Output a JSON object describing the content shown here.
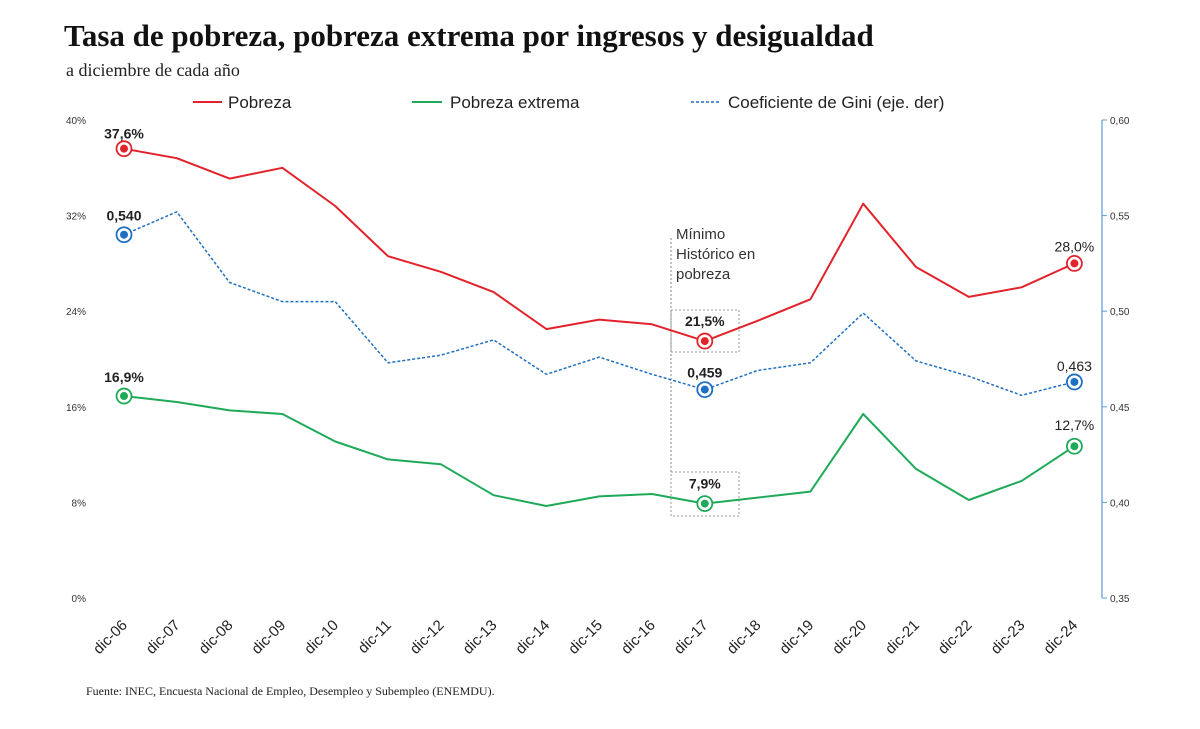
{
  "title": "Tasa de pobreza, pobreza extrema por ingresos y desigualdad",
  "subtitle": "a diciembre de cada año",
  "source": "Fuente: INEC, Encuesta Nacional de Empleo, Desempleo y Subempleo (ENEMDU).",
  "annotation": [
    "Mínimo",
    "Histórico en",
    "pobreza"
  ],
  "colors": {
    "pobreza": "#e3232b",
    "extrema": "#1faa59",
    "gini": "#1f6fc2",
    "axis": "#5b9bd5"
  },
  "chart_data": {
    "type": "line",
    "categories": [
      "dic-06",
      "dic-07",
      "dic-08",
      "dic-09",
      "dic-10",
      "dic-11",
      "dic-12",
      "dic-13",
      "dic-14",
      "dic-15",
      "dic-16",
      "dic-17",
      "dic-18",
      "dic-19",
      "dic-20",
      "dic-21",
      "dic-22",
      "dic-23",
      "dic-24"
    ],
    "y_left": {
      "min": 0,
      "max": 40,
      "ticks": [
        "0%",
        "8%",
        "16%",
        "24%",
        "32%",
        "40%"
      ],
      "tick_values": [
        0,
        8,
        16,
        24,
        32,
        40
      ]
    },
    "y_right": {
      "min": 0.35,
      "max": 0.6,
      "ticks": [
        "0,35",
        "0,40",
        "0,45",
        "0,50",
        "0,55",
        "0,60"
      ],
      "tick_values": [
        0.35,
        0.4,
        0.45,
        0.5,
        0.55,
        0.6
      ]
    },
    "legend_position": "top",
    "series": [
      {
        "key": "pobreza",
        "name": "Pobreza",
        "axis": "left",
        "style": "solid",
        "values": [
          37.6,
          36.8,
          35.1,
          36.0,
          32.8,
          28.6,
          27.3,
          25.6,
          22.5,
          23.3,
          22.9,
          21.5,
          23.2,
          25.0,
          33.0,
          27.7,
          25.2,
          26.0,
          28.0
        ]
      },
      {
        "key": "extrema",
        "name": "Pobreza extrema",
        "axis": "left",
        "style": "solid",
        "values": [
          16.9,
          16.4,
          15.7,
          15.4,
          13.1,
          11.6,
          11.2,
          8.6,
          7.7,
          8.5,
          8.7,
          7.9,
          8.4,
          8.9,
          15.4,
          10.8,
          8.2,
          9.8,
          12.7
        ]
      },
      {
        "key": "gini",
        "name": "Coeficiente de Gini (eje. der)",
        "axis": "right",
        "style": "dashed",
        "values": [
          0.54,
          0.552,
          0.515,
          0.505,
          0.505,
          0.473,
          0.477,
          0.485,
          0.467,
          0.476,
          0.467,
          0.459,
          0.469,
          0.473,
          0.499,
          0.474,
          0.466,
          0.456,
          0.463
        ]
      }
    ],
    "labels": [
      {
        "series": "pobreza",
        "index": 0,
        "text": "37,6%"
      },
      {
        "series": "pobreza",
        "index": 11,
        "text": "21,5%"
      },
      {
        "series": "pobreza",
        "index": 18,
        "text": "28,0%"
      },
      {
        "series": "extrema",
        "index": 0,
        "text": "16,9%"
      },
      {
        "series": "extrema",
        "index": 11,
        "text": "7,9%"
      },
      {
        "series": "extrema",
        "index": 18,
        "text": "12,7%"
      },
      {
        "series": "gini",
        "index": 0,
        "text": "0,540"
      },
      {
        "series": "gini",
        "index": 11,
        "text": "0,459"
      },
      {
        "series": "gini",
        "index": 18,
        "text": "0,463"
      }
    ]
  }
}
